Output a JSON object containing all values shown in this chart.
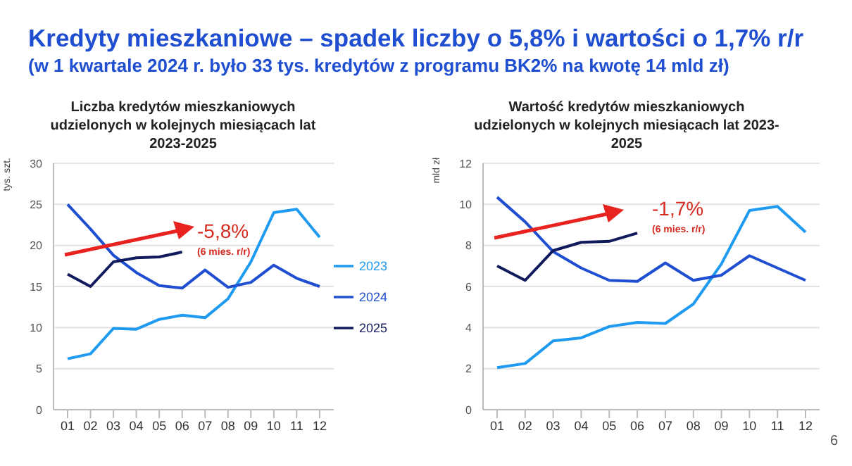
{
  "chart_data": [
    {
      "type": "other",
      "title": "Kredyty mieszkaniowe – spadek liczby o 5,8% i wartości o 1,7% r/r",
      "subtitle": "(w 1 kwartale 2024 r. było 33 tys. kredytów z programu BK2% na kwotę 14 mld zł)",
      "annotations": [
        "6"
      ]
    },
    {
      "type": "line",
      "title": "Liczba kredytów mieszkaniowych udzielonych w kolejnych miesiącach lat 2023-2025",
      "ylabel": "tys. szt.",
      "categories": [
        "01",
        "02",
        "03",
        "04",
        "05",
        "06",
        "07",
        "08",
        "09",
        "10",
        "11",
        "12"
      ],
      "series": [
        {
          "name": "2023",
          "color": "#1e9bf0",
          "values": [
            6.2,
            6.8,
            9.9,
            9.8,
            11.0,
            11.5,
            11.2,
            13.5,
            18.0,
            24.0,
            24.4,
            21.0
          ]
        },
        {
          "name": "2024",
          "color": "#1f4fd0",
          "values": [
            25.0,
            22.0,
            18.8,
            16.7,
            15.1,
            14.8,
            17.0,
            14.9,
            15.5,
            17.6,
            16.0,
            15.0
          ]
        },
        {
          "name": "2025",
          "color": "#101a5c",
          "values": [
            16.5,
            15.0,
            18.0,
            18.5,
            18.6,
            19.2,
            null,
            null,
            null,
            null,
            null,
            null
          ]
        }
      ],
      "ylim": [
        0,
        30
      ],
      "yticks": [
        0,
        5,
        10,
        15,
        20,
        25,
        30
      ],
      "grid": "y",
      "legend": "right",
      "marker": "none",
      "line_style": "solid",
      "annotations": [
        "-5,8%",
        "(6 mies. r/r)"
      ]
    },
    {
      "type": "line",
      "title": "Wartość kredytów mieszkaniowych udzielonych w kolejnych miesiącach lat 2023-2025",
      "ylabel": "mld zł",
      "categories": [
        "01",
        "02",
        "03",
        "04",
        "05",
        "06",
        "07",
        "08",
        "09",
        "10",
        "11",
        "12"
      ],
      "series": [
        {
          "color": "#1e9bf0",
          "values": [
            2.05,
            2.25,
            3.35,
            3.5,
            4.05,
            4.25,
            4.2,
            5.15,
            7.1,
            9.7,
            9.9,
            8.65
          ]
        },
        {
          "color": "#1f4fd0",
          "values": [
            10.35,
            9.15,
            7.7,
            6.9,
            6.3,
            6.25,
            7.15,
            6.3,
            6.55,
            7.5,
            6.9,
            6.3
          ]
        },
        {
          "color": "#101a5c",
          "values": [
            7.0,
            6.3,
            7.75,
            8.15,
            8.2,
            8.6,
            null,
            null,
            null,
            null,
            null,
            null
          ]
        }
      ],
      "ylim": [
        0,
        12
      ],
      "yticks": [
        0,
        2,
        4,
        6,
        8,
        10,
        12
      ],
      "grid": "y",
      "legend": false,
      "marker": "none",
      "line_style": "solid",
      "annotations": [
        "-1,7%",
        "(6 mies. r/r)"
      ]
    }
  ]
}
